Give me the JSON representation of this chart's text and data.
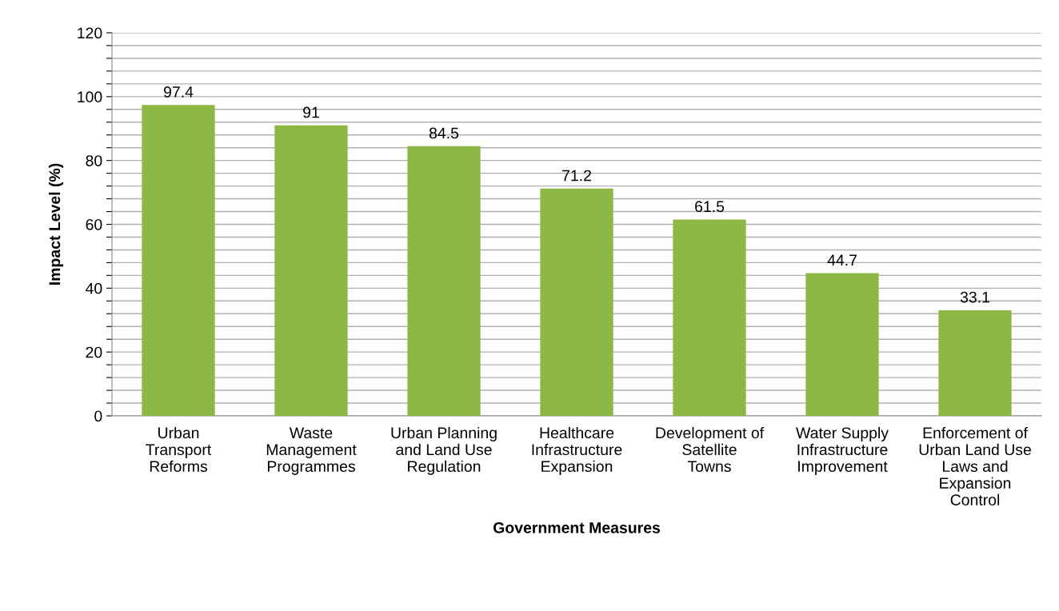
{
  "chart_data": {
    "type": "bar",
    "xlabel": "Government Measures",
    "ylabel": "Impact Level (%)",
    "categories": [
      "Urban Transport Reforms",
      "Waste Management Programmes",
      "Urban Planning and Land Use Regulation",
      "Healthcare Infrastructure Expansion",
      "Development of Satellite Towns",
      "Water Supply Infrastructure Improvement",
      "Enforcement of Urban Land Use Laws and Expansion Control"
    ],
    "values": [
      97.4,
      91,
      84.5,
      71.2,
      61.5,
      44.7,
      33.1
    ],
    "color": "#8db845",
    "ylim": [
      0,
      120
    ],
    "yticks": [
      0,
      {
        "value": 4,
        "label": null
      },
      {
        "value": 8,
        "label": null
      },
      {
        "value": 12,
        "label": null
      },
      {
        "value": 16,
        "label": null
      },
      20,
      {
        "value": 24,
        "label": null
      },
      {
        "value": 28,
        "label": null
      },
      {
        "value": 32,
        "label": null
      },
      {
        "value": 36,
        "label": null
      },
      40,
      {
        "value": 44,
        "label": null
      },
      {
        "value": 48,
        "label": null
      },
      {
        "value": 52,
        "label": null
      },
      {
        "value": 56,
        "label": null
      },
      60,
      {
        "value": 64,
        "label": null
      },
      {
        "value": 68,
        "label": null
      },
      {
        "value": 72,
        "label": null
      },
      {
        "value": 76,
        "label": null
      },
      80,
      {
        "value": 84,
        "label": null
      },
      {
        "value": 88,
        "label": null
      },
      {
        "value": 92,
        "label": null
      },
      {
        "value": 96,
        "label": null
      },
      100,
      {
        "value": 104,
        "label": null
      },
      {
        "value": 108,
        "label": null
      },
      {
        "value": 112,
        "label": null
      },
      {
        "value": 116,
        "label": null
      },
      120
    ],
    "grid": "y",
    "data_labels": true
  }
}
